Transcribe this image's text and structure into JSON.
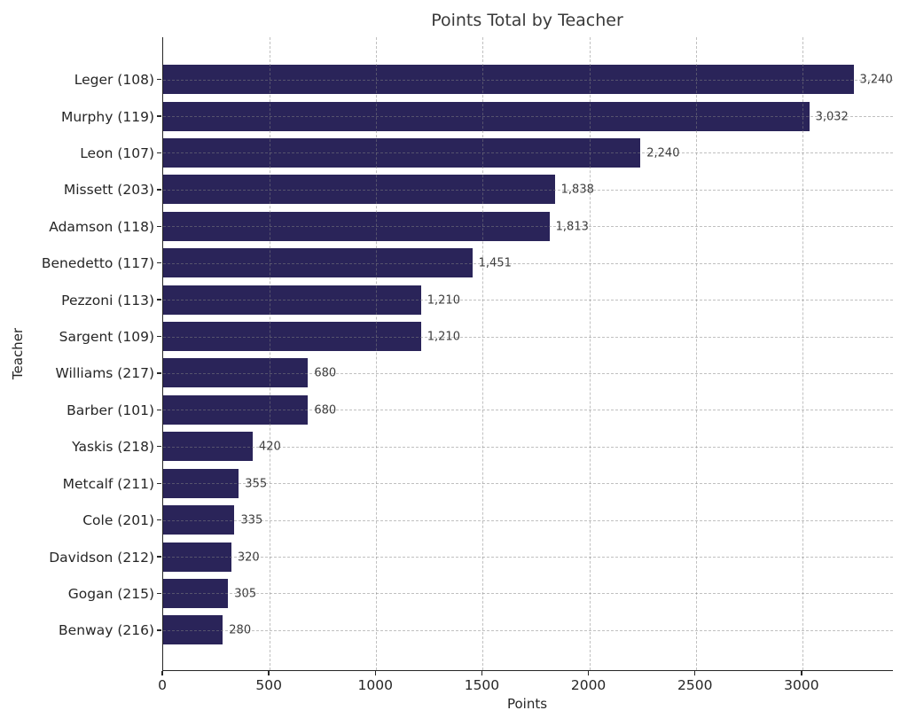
{
  "chart_data": {
    "type": "bar",
    "orientation": "horizontal",
    "title": "Points Total by Teacher",
    "xlabel": "Points",
    "ylabel": "Teacher",
    "categories": [
      "Leger (108)",
      "Murphy (119)",
      "Leon (107)",
      "Missett (203)",
      "Adamson (118)",
      "Benedetto (117)",
      "Pezzoni (113)",
      "Sargent (109)",
      "Williams (217)",
      "Barber (101)",
      "Yaskis (218)",
      "Metcalf (211)",
      "Cole (201)",
      "Davidson (212)",
      "Gogan (215)",
      "Benway (216)"
    ],
    "values": [
      3240,
      3032,
      2240,
      1838,
      1813,
      1451,
      1210,
      1210,
      680,
      680,
      420,
      355,
      335,
      320,
      305,
      280
    ],
    "value_labels": [
      "3,240",
      "3,032",
      "2,240",
      "1,838",
      "1,813",
      "1,451",
      "1,210",
      "1,210",
      "680",
      "680",
      "420",
      "355",
      "335",
      "320",
      "305",
      "280"
    ],
    "xticks": [
      0,
      500,
      1000,
      1500,
      2000,
      2500,
      3000
    ],
    "xtick_labels": [
      "0",
      "500",
      "1000",
      "1500",
      "2000",
      "2500",
      "3000"
    ],
    "xlim": [
      0,
      3425
    ],
    "grid": "dashed",
    "legend": "none",
    "colors": {
      "bar": "#2a2459",
      "background": "#ffffff",
      "title": "#3a3a3a",
      "tick_labels": "#262626",
      "value_labels": "#3d3d3d",
      "grid": "#b0b0b0"
    }
  }
}
